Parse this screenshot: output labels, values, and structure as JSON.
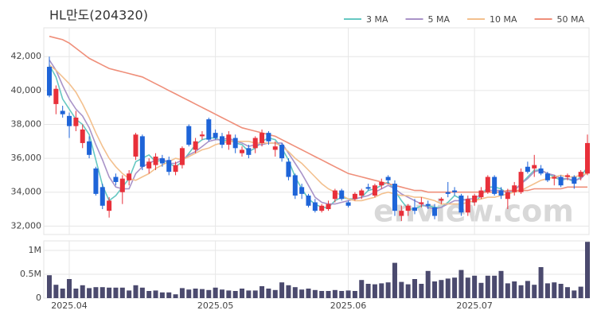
{
  "chart_data": {
    "type": "candlestick",
    "title": "HL만도(204320)",
    "watermark": "enview.com",
    "categories": [
      null,
      null,
      null,
      "2025.04",
      null,
      null,
      null,
      null,
      null,
      null,
      null,
      null,
      null,
      null,
      null,
      null,
      null,
      null,
      null,
      null,
      null,
      null,
      null,
      null,
      null,
      "2025.05",
      null,
      null,
      null,
      null,
      null,
      null,
      null,
      null,
      null,
      null,
      null,
      null,
      null,
      null,
      null,
      null,
      null,
      null,
      null,
      "2025.06",
      null,
      null,
      null,
      null,
      null,
      null,
      null,
      null,
      null,
      null,
      null,
      null,
      null,
      null,
      null,
      null,
      null,
      null,
      "2025.07",
      null,
      null,
      null,
      null,
      null,
      null,
      null,
      null,
      null,
      null,
      null,
      null,
      null,
      null,
      null,
      null,
      null
    ],
    "open": [
      41400,
      39200,
      38800,
      38500,
      37900,
      36900,
      37000,
      35400,
      34300,
      32900,
      34900,
      34000,
      34700,
      36100,
      37300,
      35400,
      35600,
      36000,
      35900,
      35200,
      35600,
      37900,
      36500,
      37300,
      38300,
      37500,
      37300,
      36800,
      37200,
      36300,
      36600,
      36600,
      36900,
      37500,
      36500,
      36800,
      35800,
      35000,
      34300,
      33800,
      33400,
      32900,
      33000,
      33600,
      34100,
      33400,
      33600,
      33800,
      34300,
      33800,
      34400,
      34900,
      34500,
      32600,
      32900,
      33100,
      33300,
      33300,
      33100,
      33500,
      34000,
      34100,
      33800,
      32800,
      33400,
      33700,
      34000,
      34900,
      34100,
      33600,
      34000,
      34000,
      35500,
      35400,
      35400,
      35100,
      34800,
      34900,
      34900,
      34900,
      34900,
      35100
    ],
    "high": [
      42000,
      40300,
      39100,
      38700,
      38800,
      38000,
      37300,
      35500,
      34500,
      33700,
      35100,
      35000,
      35300,
      37500,
      37400,
      36000,
      36300,
      36200,
      36100,
      35800,
      36700,
      38000,
      37200,
      37600,
      38400,
      37700,
      37500,
      37600,
      37400,
      36700,
      36800,
      37300,
      37700,
      37600,
      37000,
      36900,
      36000,
      35100,
      34500,
      33900,
      33600,
      33300,
      33500,
      34200,
      34200,
      33500,
      34000,
      34200,
      34500,
      34500,
      34800,
      35000,
      34700,
      33200,
      33300,
      33600,
      33700,
      33500,
      33300,
      33700,
      34600,
      34300,
      33900,
      33800,
      33900,
      34300,
      35000,
      35000,
      34300,
      34200,
      34600,
      35400,
      35800,
      36200,
      35600,
      35200,
      35000,
      35000,
      35100,
      35000,
      35300,
      37400
    ],
    "low": [
      39600,
      38600,
      38400,
      37200,
      37600,
      36600,
      36000,
      33800,
      33000,
      32500,
      34400,
      33300,
      34400,
      35900,
      35300,
      35100,
      35300,
      35500,
      35000,
      35000,
      35400,
      36700,
      36300,
      37100,
      37000,
      37100,
      36600,
      36500,
      36300,
      36100,
      36000,
      36300,
      36700,
      36800,
      36100,
      35800,
      34700,
      33600,
      33600,
      33100,
      32800,
      32800,
      32900,
      33400,
      33500,
      33100,
      33500,
      33600,
      34100,
      33700,
      34200,
      34500,
      32600,
      32300,
      32600,
      32700,
      33100,
      33000,
      32400,
      33300,
      33700,
      33800,
      32600,
      32600,
      33200,
      33600,
      33900,
      33800,
      33600,
      33000,
      33800,
      33900,
      35100,
      34900,
      35000,
      34600,
      34400,
      34300,
      34700,
      34200,
      34700,
      35000
    ],
    "close": [
      39700,
      40100,
      38600,
      37900,
      38400,
      37700,
      36200,
      33900,
      33200,
      33500,
      34600,
      34800,
      35100,
      37400,
      35500,
      35800,
      36100,
      35700,
      35200,
      35600,
      36600,
      36800,
      37000,
      37400,
      37100,
      37200,
      36800,
      37400,
      36600,
      36500,
      36200,
      37200,
      37500,
      37000,
      36700,
      36000,
      34900,
      33800,
      33900,
      33200,
      32900,
      33200,
      33300,
      34100,
      33600,
      33200,
      33900,
      34100,
      34200,
      34400,
      34600,
      34700,
      32900,
      32900,
      33200,
      32900,
      33400,
      33200,
      32600,
      33600,
      33900,
      34000,
      32800,
      33600,
      33800,
      34100,
      34900,
      33900,
      33800,
      34000,
      34400,
      35200,
      35200,
      35600,
      35100,
      34700,
      34900,
      34400,
      35000,
      34500,
      35200,
      36900
    ],
    "volume": [
      480000,
      280000,
      200000,
      400000,
      200000,
      270000,
      210000,
      230000,
      230000,
      220000,
      220000,
      220000,
      160000,
      270000,
      220000,
      150000,
      160000,
      120000,
      120000,
      80000,
      210000,
      180000,
      200000,
      190000,
      170000,
      220000,
      180000,
      160000,
      150000,
      200000,
      160000,
      160000,
      250000,
      200000,
      170000,
      330000,
      270000,
      230000,
      180000,
      200000,
      170000,
      150000,
      150000,
      170000,
      150000,
      160000,
      150000,
      380000,
      300000,
      290000,
      310000,
      330000,
      740000,
      340000,
      290000,
      400000,
      300000,
      570000,
      350000,
      380000,
      410000,
      430000,
      590000,
      430000,
      470000,
      320000,
      470000,
      470000,
      570000,
      310000,
      350000,
      270000,
      360000,
      280000,
      650000,
      310000,
      330000,
      300000,
      230000,
      160000,
      240000,
      1180000
    ],
    "up_color": "#e8303a",
    "down_color": "#1e64d8",
    "volume_color": "#4b4a6e",
    "series": [
      {
        "name": "3 MA",
        "color": "#66c8c2",
        "values": [
          41500,
          40800,
          39500,
          38900,
          38300,
          38000,
          37400,
          35900,
          34400,
          33500,
          33800,
          34300,
          34800,
          35800,
          36000,
          36200,
          35800,
          35900,
          35700,
          35500,
          35800,
          36300,
          36800,
          37100,
          37200,
          37200,
          37000,
          37100,
          36900,
          36800,
          36400,
          36600,
          37000,
          37200,
          37100,
          36600,
          35900,
          34900,
          34200,
          33600,
          33300,
          33100,
          33100,
          33500,
          33700,
          33600,
          33600,
          33700,
          34100,
          34200,
          34400,
          34600,
          34100,
          33500,
          33000,
          33000,
          33200,
          33200,
          33100,
          33100,
          33400,
          33800,
          33600,
          33500,
          33400,
          33800,
          34300,
          34300,
          34200,
          33900,
          34100,
          34500,
          34900,
          35300,
          35300,
          35100,
          34900,
          34700,
          34800,
          34600,
          34900,
          35500
        ]
      },
      {
        "name": "5 MA",
        "color": "#a993c8",
        "values": [
          41800,
          41200,
          40300,
          39500,
          38900,
          38500,
          37800,
          36800,
          35900,
          34900,
          34300,
          34200,
          34200,
          35100,
          35500,
          35700,
          35900,
          36000,
          35700,
          35700,
          35900,
          36200,
          36400,
          36700,
          37000,
          37100,
          37100,
          37200,
          37000,
          36900,
          36700,
          36800,
          36800,
          36900,
          36900,
          36900,
          36300,
          35700,
          35100,
          34400,
          33700,
          33400,
          33300,
          33300,
          33400,
          33500,
          33600,
          33700,
          33800,
          34000,
          34200,
          34400,
          34200,
          33900,
          33700,
          33500,
          33300,
          33100,
          33000,
          33100,
          33300,
          33500,
          33500,
          33600,
          33600,
          33900,
          34100,
          34100,
          34100,
          34000,
          34100,
          34500,
          34800,
          35200,
          35300,
          35100,
          35000,
          34800,
          34800,
          34700,
          34800,
          35200
        ]
      },
      {
        "name": "10 MA",
        "color": "#f3c08e",
        "values": [
          41500,
          41200,
          40800,
          40400,
          39900,
          39200,
          38400,
          37500,
          36700,
          36000,
          35500,
          35100,
          34800,
          34700,
          34900,
          35100,
          35400,
          35600,
          35800,
          36000,
          35900,
          36100,
          36300,
          36500,
          36600,
          36800,
          36900,
          37000,
          37000,
          37000,
          37000,
          36900,
          36900,
          36900,
          36900,
          36700,
          36400,
          36000,
          35700,
          35300,
          34900,
          34500,
          34200,
          34000,
          33800,
          33600,
          33500,
          33500,
          33600,
          33700,
          33900,
          34000,
          33900,
          33800,
          33800,
          33700,
          33700,
          33600,
          33500,
          33300,
          33300,
          33300,
          33300,
          33400,
          33500,
          33600,
          33700,
          33700,
          33800,
          33900,
          34000,
          34100,
          34300,
          34500,
          34700,
          34800,
          34900,
          35000,
          34900,
          34900,
          35000,
          35100
        ]
      },
      {
        "name": "50 MA",
        "color": "#ef8f7a",
        "values": [
          43200,
          43100,
          43000,
          42800,
          42500,
          42200,
          41900,
          41700,
          41500,
          41300,
          41200,
          41100,
          41000,
          40900,
          40800,
          40600,
          40400,
          40200,
          40000,
          39800,
          39600,
          39400,
          39200,
          39000,
          38800,
          38600,
          38400,
          38200,
          38000,
          37800,
          37700,
          37600,
          37500,
          37400,
          37300,
          37100,
          36900,
          36700,
          36500,
          36300,
          36100,
          35900,
          35700,
          35500,
          35300,
          35100,
          35000,
          34900,
          34800,
          34700,
          34600,
          34500,
          34400,
          34300,
          34200,
          34100,
          34100,
          34000,
          34000,
          34000,
          34000,
          34000,
          34000,
          34000,
          34000,
          34000,
          34000,
          34000,
          34000,
          34100,
          34100,
          34100,
          34100,
          34200,
          34200,
          34200,
          34200,
          34200,
          34300,
          34300,
          34300,
          34300
        ]
      }
    ],
    "ylim": [
      31500,
      43700
    ],
    "yticks": [
      {
        "value": 32000,
        "label": "32,000"
      },
      {
        "value": 34000,
        "label": "34,000"
      },
      {
        "value": 36000,
        "label": "36,000"
      },
      {
        "value": 38000,
        "label": "38,000"
      },
      {
        "value": 40000,
        "label": "40,000"
      },
      {
        "value": 42000,
        "label": "42,000"
      }
    ],
    "volume_ylim": [
      0,
      1200000
    ],
    "volume_yticks": [
      0,
      {
        "value": 500000,
        "label": "0.5M"
      },
      {
        "value": 1000000,
        "label": "1M"
      }
    ],
    "grid": true
  }
}
